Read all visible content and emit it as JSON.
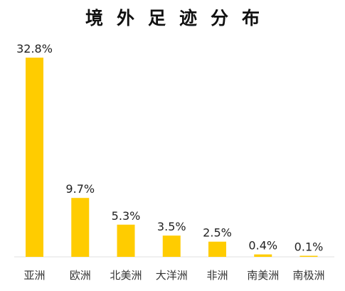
{
  "chart_data": {
    "type": "bar",
    "title": "境外足迹分布",
    "categories": [
      "亚洲",
      "欧洲",
      "北美洲",
      "大洋洲",
      "非洲",
      "南美洲",
      "南极洲"
    ],
    "values": [
      32.8,
      9.7,
      5.3,
      3.5,
      2.5,
      0.4,
      0.1
    ],
    "value_labels": [
      "32.8%",
      "9.7%",
      "5.3%",
      "3.5%",
      "2.5%",
      "0.4%",
      "0.1%"
    ],
    "unit": "%",
    "ylim": [
      0,
      32.8
    ],
    "grid": false,
    "legend": "none",
    "bar_color": "#FFCC00"
  }
}
